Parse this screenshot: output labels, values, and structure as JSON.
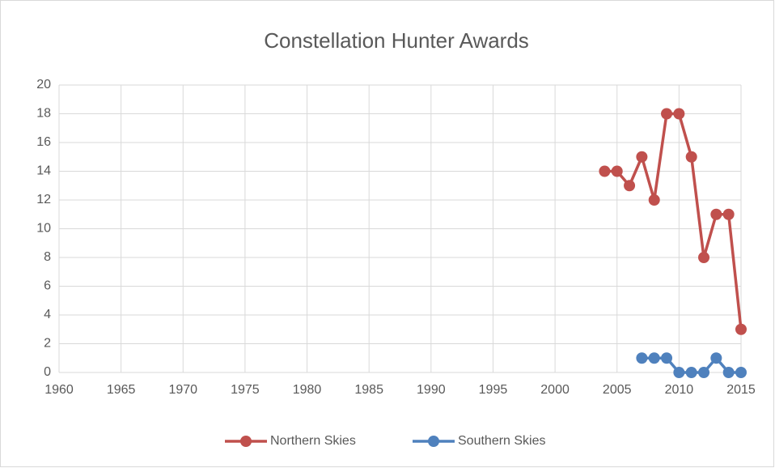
{
  "chart_data": {
    "type": "line",
    "title": "Constellation Hunter Awards",
    "x": [
      2004,
      2005,
      2006,
      2007,
      2008,
      2009,
      2010,
      2011,
      2012,
      2013,
      2014,
      2015
    ],
    "series": [
      {
        "name": "Northern Skies",
        "color": "#c0504d",
        "values": [
          14,
          14,
          13,
          15,
          12,
          18,
          18,
          15,
          8,
          11,
          11,
          3
        ]
      },
      {
        "name": "Southern Skies",
        "color": "#4f81bd",
        "values": [
          null,
          null,
          null,
          1,
          1,
          1,
          0,
          0,
          0,
          1,
          0,
          0
        ]
      }
    ],
    "xlim": [
      1960,
      2015
    ],
    "xticks": [
      1960,
      1965,
      1970,
      1975,
      1980,
      1985,
      1990,
      1995,
      2000,
      2005,
      2010,
      2015
    ],
    "ylim": [
      0,
      20
    ],
    "yticks": [
      0,
      2,
      4,
      6,
      8,
      10,
      12,
      14,
      16,
      18,
      20
    ],
    "grid": true,
    "legend": "bottom"
  }
}
